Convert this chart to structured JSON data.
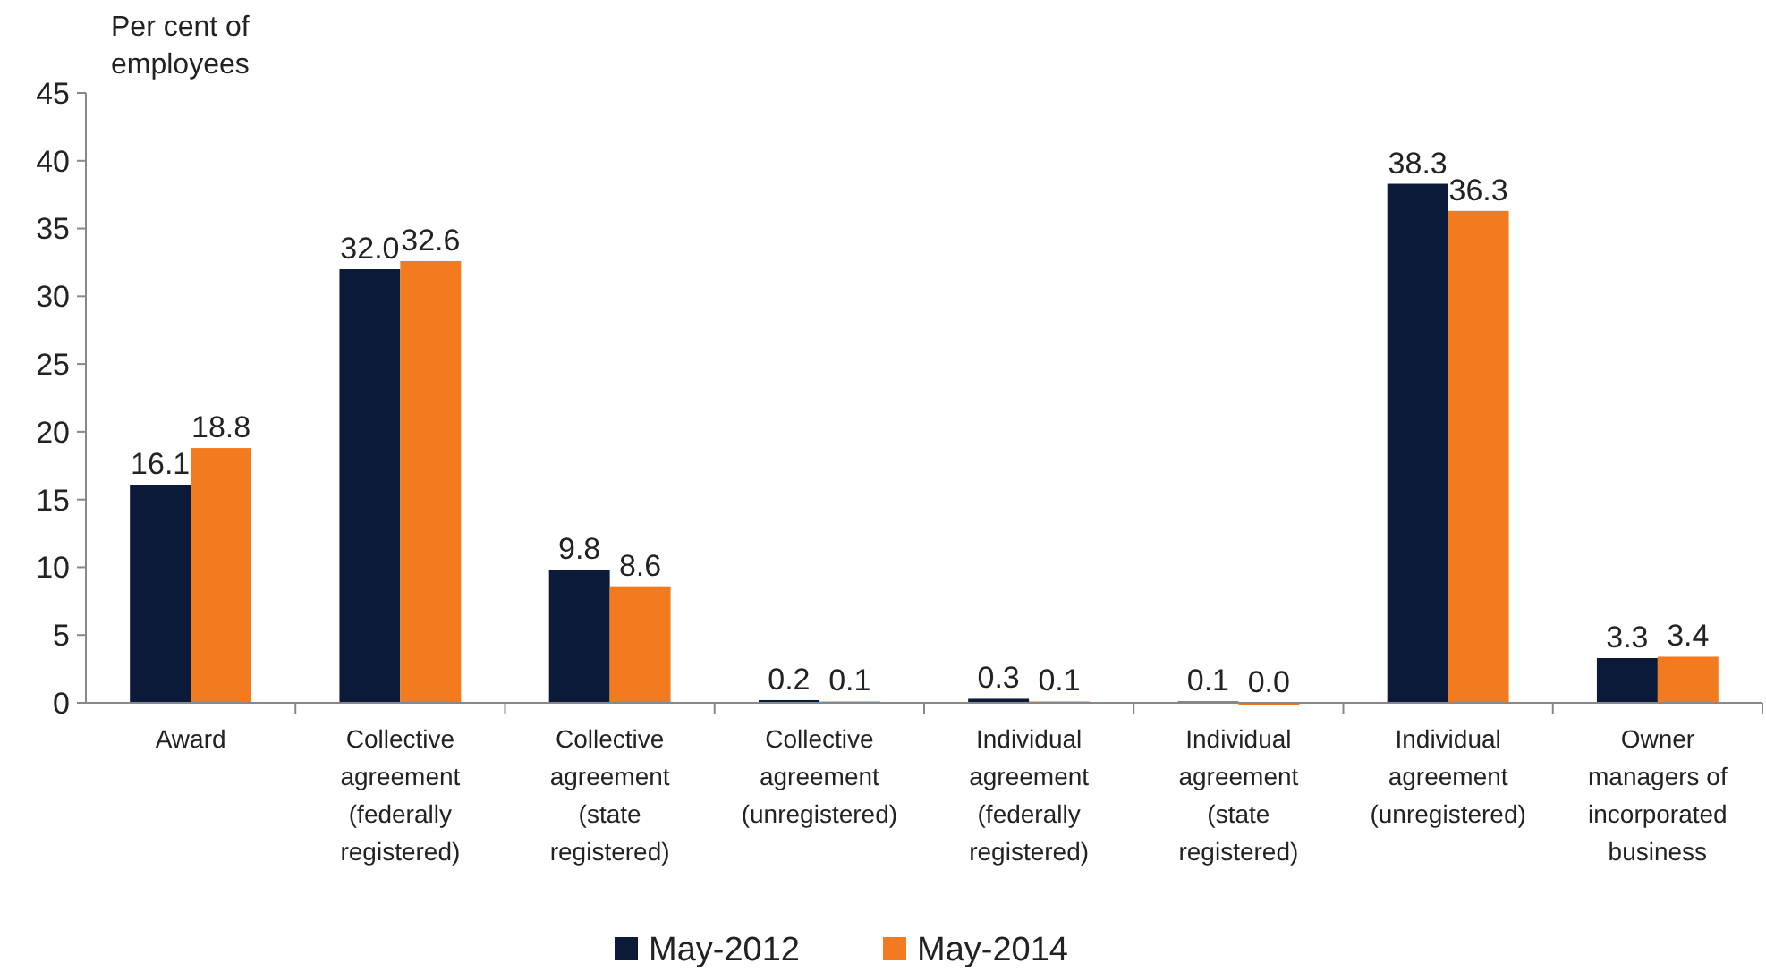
{
  "chart_data": {
    "type": "bar",
    "ylabel": "Per cent of employees",
    "categories": [
      "Award",
      "Collective agreement (federally registered)",
      "Collective agreement (state registered)",
      "Collective agreement (unregistered)",
      "Individual agreement (federally registered)",
      "Individual agreement (state registered)",
      "Individual agreement (unregistered)",
      "Owner managers of incorporated business"
    ],
    "series": [
      {
        "name": "May-2012",
        "color": "#0c1a3a",
        "values": [
          16.1,
          32.0,
          9.8,
          0.2,
          0.3,
          0.1,
          38.3,
          3.3
        ],
        "value_labels": [
          "16.1",
          "32.0",
          "9.8",
          "0.2",
          "0.3",
          "0.1",
          "38.3",
          "3.3"
        ]
      },
      {
        "name": "May-2014",
        "color": "#f47a20",
        "values": [
          18.8,
          32.6,
          8.6,
          0.1,
          0.1,
          0.0,
          36.3,
          3.4
        ],
        "value_labels": [
          "18.8",
          "32.6",
          "8.6",
          "0.1",
          "0.1",
          "0.0",
          "36.3",
          "3.4"
        ]
      }
    ],
    "ylim": [
      0,
      45
    ],
    "yticks": [
      0,
      5,
      10,
      15,
      20,
      25,
      30,
      35,
      40,
      45
    ],
    "grid": false,
    "legend": "bottom"
  }
}
